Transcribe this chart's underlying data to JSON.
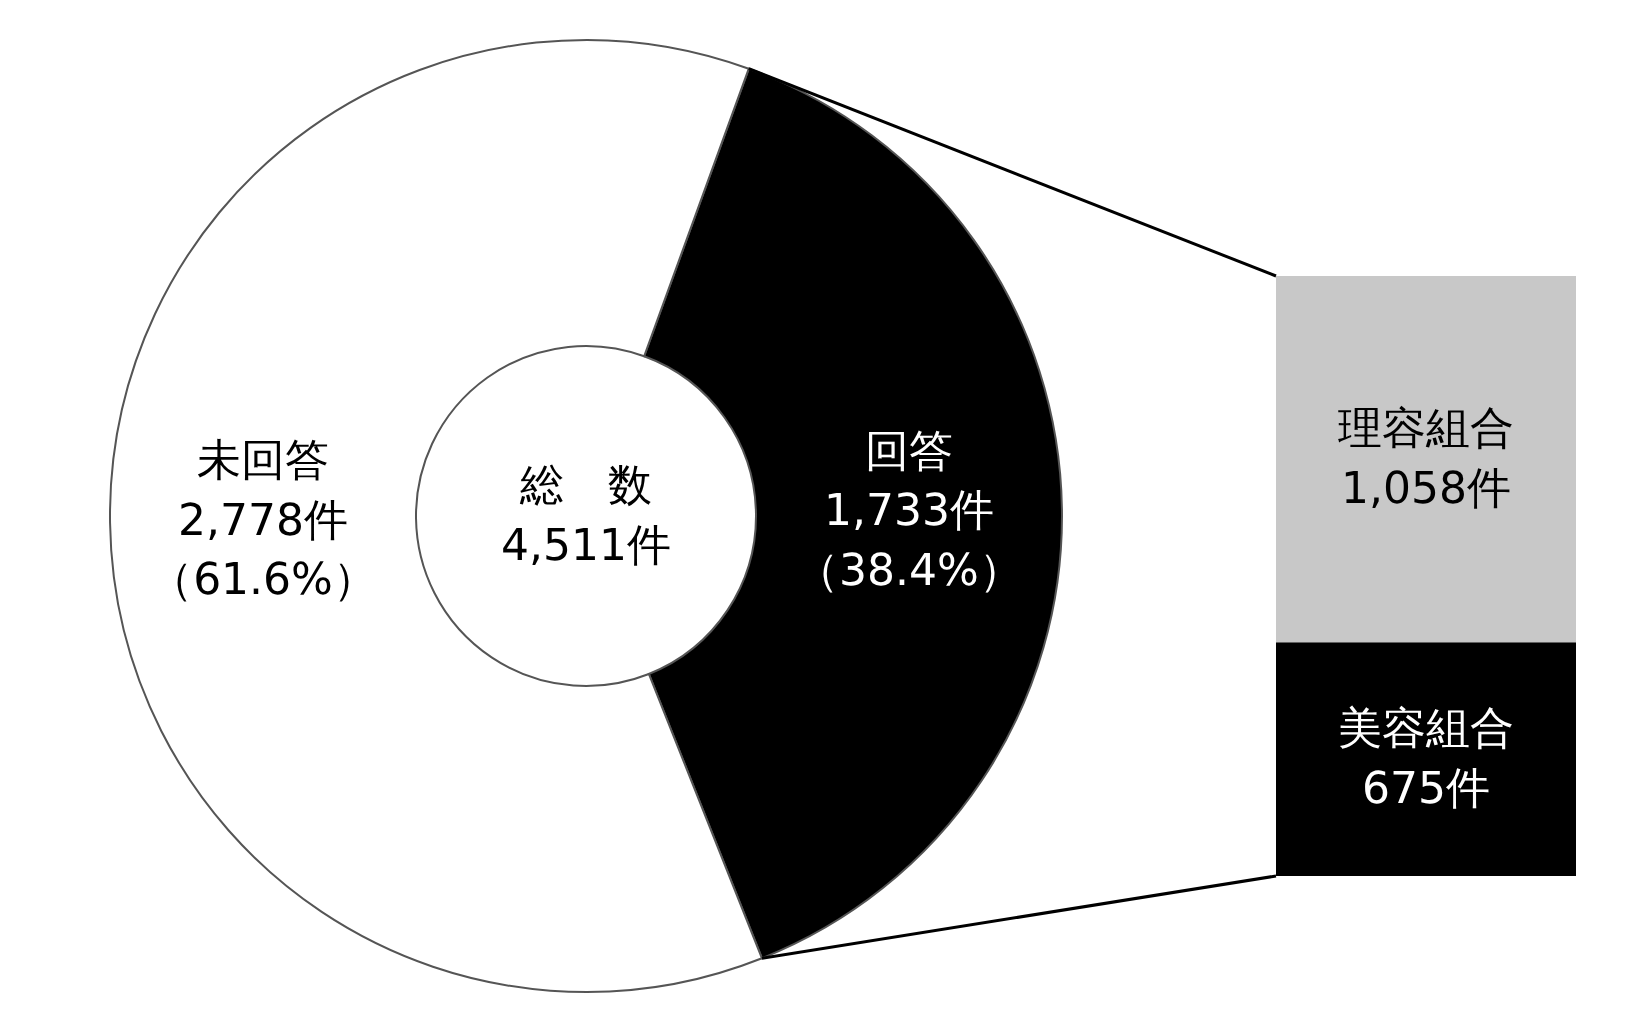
{
  "chart_data": [
    {
      "type": "donut",
      "categories": [
        "回答",
        "未回答"
      ],
      "values": [
        1733,
        2778
      ],
      "colors": [
        "#000000",
        "#ffffff"
      ],
      "value_labels": [
        "1,733件（38.4%）",
        "2,778件（61.6%）"
      ],
      "annotations": [
        "総　数\n4,511件"
      ]
    },
    {
      "type": "bar",
      "stacked": true,
      "categories": [
        null
      ],
      "tick_labels": false,
      "series": [
        {
          "name": "美容組合",
          "color": "#000000",
          "values": [
            675
          ],
          "value_labels": [
            "675件"
          ]
        },
        {
          "name": "理容組合",
          "color": "#c8c8c8",
          "values": [
            1058
          ],
          "value_labels": [
            "1,058件"
          ]
        }
      ]
    }
  ]
}
